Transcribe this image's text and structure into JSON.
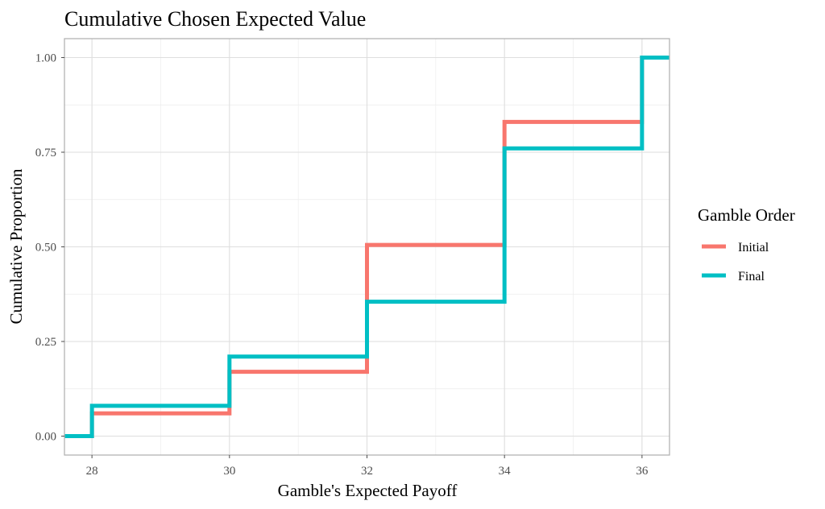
{
  "chart_data": {
    "type": "line",
    "step": true,
    "title": "Cumulative Chosen Expected Value",
    "xlabel": "Gamble's Expected Payoff",
    "ylabel": "Cumulative Proportion",
    "xlim": [
      27.6,
      36.4
    ],
    "ylim": [
      -0.05,
      1.05
    ],
    "x_ticks": [
      28,
      30,
      32,
      34,
      36
    ],
    "x_tick_labels": [
      "28",
      "30",
      "32",
      "34",
      "36"
    ],
    "y_ticks": [
      0,
      0.25,
      0.5,
      0.75,
      1
    ],
    "y_tick_labels": [
      "0.00",
      "0.25",
      "0.50",
      "0.75",
      "1.00"
    ],
    "grid": true,
    "legend": {
      "title": "Gamble Order",
      "placement": "right"
    },
    "series": [
      {
        "name": "Initial",
        "color": "#F8766D",
        "x": [
          27.6,
          28,
          30,
          32,
          34,
          36,
          36.4
        ],
        "y": [
          0,
          0.06,
          0.17,
          0.505,
          0.83,
          1,
          1
        ]
      },
      {
        "name": "Final",
        "color": "#00BFC4",
        "x": [
          27.6,
          28,
          30,
          32,
          34,
          36,
          36.4
        ],
        "y": [
          0,
          0.08,
          0.21,
          0.355,
          0.76,
          1,
          1
        ]
      }
    ]
  }
}
